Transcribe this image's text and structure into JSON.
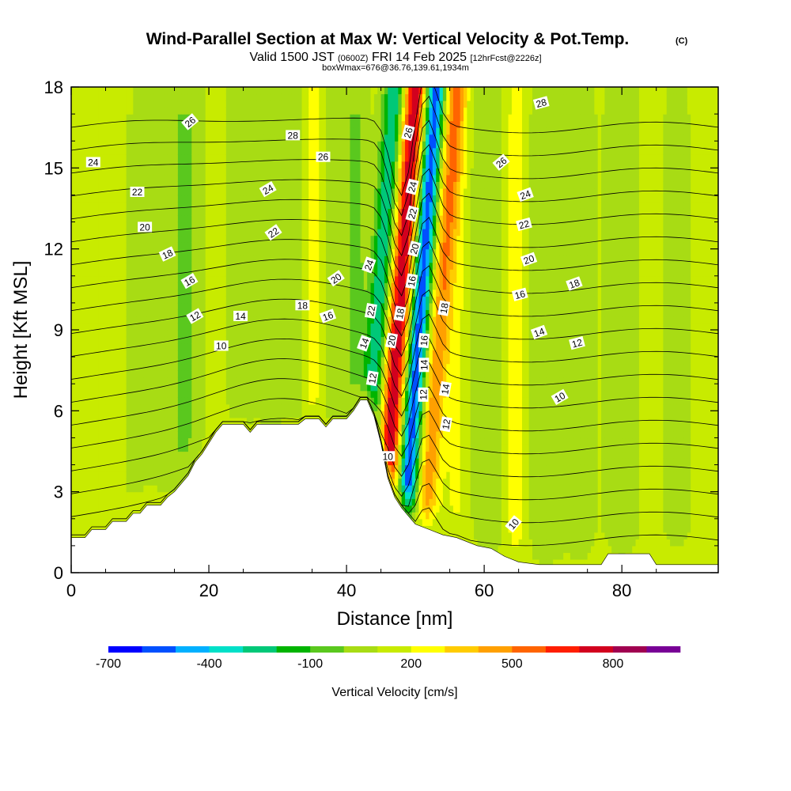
{
  "header": {
    "title": "Wind-Parallel Section at Max W: Vertical Velocity & Pot.Temp.",
    "title_units": "(C)",
    "valid_prefix": "Valid 1500 JST",
    "valid_utc": "(0600Z)",
    "valid_date": "FRI 14 Feb 2025",
    "forecast": "[12hrFcst@2226z]",
    "boxinfo": "boxWmax=676@36.76,139.61,1934m"
  },
  "chart_data": {
    "type": "heatmap",
    "xlabel": "Distance [nm]",
    "ylabel": "Height [Kft MSL]",
    "xlim": [
      0,
      94
    ],
    "ylim": [
      0,
      18
    ],
    "x_ticks": [
      0,
      20,
      40,
      60,
      80
    ],
    "y_ticks": [
      0,
      3,
      6,
      9,
      12,
      15,
      18
    ],
    "x_tick_labels": [
      "0",
      "20",
      "40",
      "60",
      "80"
    ],
    "y_tick_labels": [
      "0",
      "3",
      "6",
      "9",
      "12",
      "15",
      "18"
    ],
    "terrain": [
      [
        0,
        1.3
      ],
      [
        2,
        1.3
      ],
      [
        3,
        1.6
      ],
      [
        5,
        1.6
      ],
      [
        6,
        1.9
      ],
      [
        8,
        1.9
      ],
      [
        9,
        2.2
      ],
      [
        10,
        2.2
      ],
      [
        11,
        2.5
      ],
      [
        13,
        2.5
      ],
      [
        14,
        2.8
      ],
      [
        15,
        3.0
      ],
      [
        16,
        3.3
      ],
      [
        17,
        3.6
      ],
      [
        18,
        4.1
      ],
      [
        19,
        4.4
      ],
      [
        20,
        4.8
      ],
      [
        21,
        5.2
      ],
      [
        22,
        5.5
      ],
      [
        25,
        5.5
      ],
      [
        26,
        5.2
      ],
      [
        27,
        5.5
      ],
      [
        33,
        5.5
      ],
      [
        34,
        5.7
      ],
      [
        36,
        5.7
      ],
      [
        37,
        5.4
      ],
      [
        38,
        5.7
      ],
      [
        40,
        5.7
      ],
      [
        41,
        6.0
      ],
      [
        42,
        6.4
      ],
      [
        43,
        6.4
      ],
      [
        44,
        5.8
      ],
      [
        45,
        4.8
      ],
      [
        46,
        3.5
      ],
      [
        47,
        2.8
      ],
      [
        48,
        2.4
      ],
      [
        49,
        2.1
      ],
      [
        50,
        1.8
      ],
      [
        52,
        1.6
      ],
      [
        54,
        1.4
      ],
      [
        56,
        1.3
      ],
      [
        59,
        1.0
      ],
      [
        61,
        0.9
      ],
      [
        63,
        0.6
      ],
      [
        65,
        0.4
      ],
      [
        68,
        0.3
      ],
      [
        70,
        0.3
      ],
      [
        77,
        0.3
      ],
      [
        78,
        0.7
      ],
      [
        84,
        0.7
      ],
      [
        85,
        0.3
      ],
      [
        94,
        0.3
      ]
    ],
    "w_field": {
      "units": "cm/s",
      "background": 20,
      "bands": [
        {
          "x": 4,
          "w": 4,
          "v": -10
        },
        {
          "x": 10,
          "w": 3,
          "v": -25
        },
        {
          "x": 16.5,
          "w": 3,
          "v": -130
        },
        {
          "x": 21,
          "w": 1.5,
          "v": 60
        },
        {
          "x": 24,
          "w": 2,
          "v": -60
        },
        {
          "x": 29,
          "w": 2.5,
          "v": -100
        },
        {
          "x": 33.5,
          "w": 1.5,
          "v": -70
        },
        {
          "x": 35,
          "w": 1.2,
          "v": 180
        },
        {
          "x": 38.5,
          "w": 2,
          "v": -80
        },
        {
          "x": 41.5,
          "w": 1.5,
          "v": -140
        },
        {
          "x": 44.5,
          "w": 1.5,
          "v": -420
        },
        {
          "x": 47.5,
          "w": 1.6,
          "v": 676
        },
        {
          "x": 50.5,
          "w": 1.4,
          "v": -700
        },
        {
          "x": 53.5,
          "w": 1.5,
          "v": 350
        },
        {
          "x": 56,
          "w": 2,
          "v": 100
        },
        {
          "x": 60.5,
          "w": 2.5,
          "v": -120
        },
        {
          "x": 64.5,
          "w": 1.5,
          "v": 150
        },
        {
          "x": 69,
          "w": 2.5,
          "v": -90
        },
        {
          "x": 74,
          "w": 2,
          "v": -60
        },
        {
          "x": 80,
          "w": 2,
          "v": -110
        },
        {
          "x": 88,
          "w": 3,
          "v": -30
        }
      ]
    },
    "theta_contours": {
      "levels": [
        10,
        11,
        12,
        13,
        14,
        15,
        16,
        17,
        18,
        19,
        20,
        21,
        22,
        23,
        24,
        25,
        26,
        27,
        28
      ],
      "labels": [
        {
          "text": "24",
          "x": 3.2,
          "y": 15.2,
          "ang": 0
        },
        {
          "text": "22",
          "x": 9.6,
          "y": 14.1,
          "ang": 0
        },
        {
          "text": "20",
          "x": 10.7,
          "y": 12.8,
          "ang": 0
        },
        {
          "text": "18",
          "x": 14.0,
          "y": 11.8,
          "ang": -25
        },
        {
          "text": "16",
          "x": 17.2,
          "y": 10.8,
          "ang": -30
        },
        {
          "text": "12",
          "x": 18.0,
          "y": 9.5,
          "ang": -30
        },
        {
          "text": "10",
          "x": 21.8,
          "y": 8.4,
          "ang": 0
        },
        {
          "text": "14",
          "x": 24.6,
          "y": 9.5,
          "ang": 0
        },
        {
          "text": "26",
          "x": 17.3,
          "y": 16.7,
          "ang": -40
        },
        {
          "text": "28",
          "x": 32.2,
          "y": 16.2,
          "ang": 0
        },
        {
          "text": "26",
          "x": 36.6,
          "y": 15.4,
          "ang": 0
        },
        {
          "text": "24",
          "x": 28.6,
          "y": 14.2,
          "ang": -30
        },
        {
          "text": "22",
          "x": 29.4,
          "y": 12.6,
          "ang": -35
        },
        {
          "text": "18",
          "x": 33.6,
          "y": 9.9,
          "ang": 0
        },
        {
          "text": "16",
          "x": 37.3,
          "y": 9.5,
          "ang": -20
        },
        {
          "text": "20",
          "x": 38.5,
          "y": 10.9,
          "ang": -35
        },
        {
          "text": "24",
          "x": 43.3,
          "y": 11.4,
          "ang": -70
        },
        {
          "text": "22",
          "x": 43.6,
          "y": 9.7,
          "ang": -80
        },
        {
          "text": "14",
          "x": 42.6,
          "y": 8.5,
          "ang": -70
        },
        {
          "text": "12",
          "x": 43.8,
          "y": 7.2,
          "ang": -80
        },
        {
          "text": "10",
          "x": 46.0,
          "y": 4.3,
          "ang": 0
        },
        {
          "text": "20",
          "x": 46.6,
          "y": 8.6,
          "ang": -80
        },
        {
          "text": "18",
          "x": 47.8,
          "y": 9.6,
          "ang": -80
        },
        {
          "text": "16",
          "x": 49.5,
          "y": 10.8,
          "ang": -80
        },
        {
          "text": "20",
          "x": 49.9,
          "y": 12.0,
          "ang": -75
        },
        {
          "text": "22",
          "x": 49.6,
          "y": 13.3,
          "ang": -75
        },
        {
          "text": "24",
          "x": 49.6,
          "y": 14.3,
          "ang": -75
        },
        {
          "text": "26",
          "x": 49.0,
          "y": 16.3,
          "ang": -75
        },
        {
          "text": "16",
          "x": 51.3,
          "y": 8.6,
          "ang": -85
        },
        {
          "text": "14",
          "x": 51.3,
          "y": 7.7,
          "ang": -90
        },
        {
          "text": "12",
          "x": 51.2,
          "y": 6.6,
          "ang": -90
        },
        {
          "text": "18",
          "x": 54.2,
          "y": 9.8,
          "ang": -80
        },
        {
          "text": "14",
          "x": 54.4,
          "y": 6.8,
          "ang": -80
        },
        {
          "text": "12",
          "x": 54.5,
          "y": 5.5,
          "ang": -80
        },
        {
          "text": "28",
          "x": 68.3,
          "y": 17.4,
          "ang": -15
        },
        {
          "text": "26",
          "x": 62.5,
          "y": 15.2,
          "ang": -40
        },
        {
          "text": "24",
          "x": 66.0,
          "y": 14.0,
          "ang": -20
        },
        {
          "text": "22",
          "x": 65.8,
          "y": 12.9,
          "ang": -15
        },
        {
          "text": "20",
          "x": 66.5,
          "y": 11.6,
          "ang": -20
        },
        {
          "text": "16",
          "x": 65.2,
          "y": 10.3,
          "ang": -15
        },
        {
          "text": "18",
          "x": 73.1,
          "y": 10.7,
          "ang": -20
        },
        {
          "text": "14",
          "x": 68.0,
          "y": 8.9,
          "ang": -20
        },
        {
          "text": "12",
          "x": 73.5,
          "y": 8.5,
          "ang": -15
        },
        {
          "text": "10",
          "x": 71.0,
          "y": 6.5,
          "ang": -30
        },
        {
          "text": "10",
          "x": 64.3,
          "y": 1.8,
          "ang": -50
        }
      ]
    },
    "colorbar": {
      "label": "Vertical Velocity [cm/s]",
      "ticks": [
        {
          "index": 0,
          "text": "-700"
        },
        {
          "index": 3,
          "text": "-400"
        },
        {
          "index": 6,
          "text": "-100"
        },
        {
          "index": 9,
          "text": "200"
        },
        {
          "index": 12,
          "text": "500"
        },
        {
          "index": 15,
          "text": "800"
        }
      ],
      "colors": [
        "#0000ff",
        "#0050ff",
        "#00b0ff",
        "#00e0c8",
        "#00c878",
        "#00b400",
        "#5ac81e",
        "#a8dc14",
        "#c8eb00",
        "#ffff00",
        "#ffcc00",
        "#ffa000",
        "#ff6400",
        "#ff1e00",
        "#d2001e",
        "#a00050",
        "#780096"
      ]
    }
  }
}
